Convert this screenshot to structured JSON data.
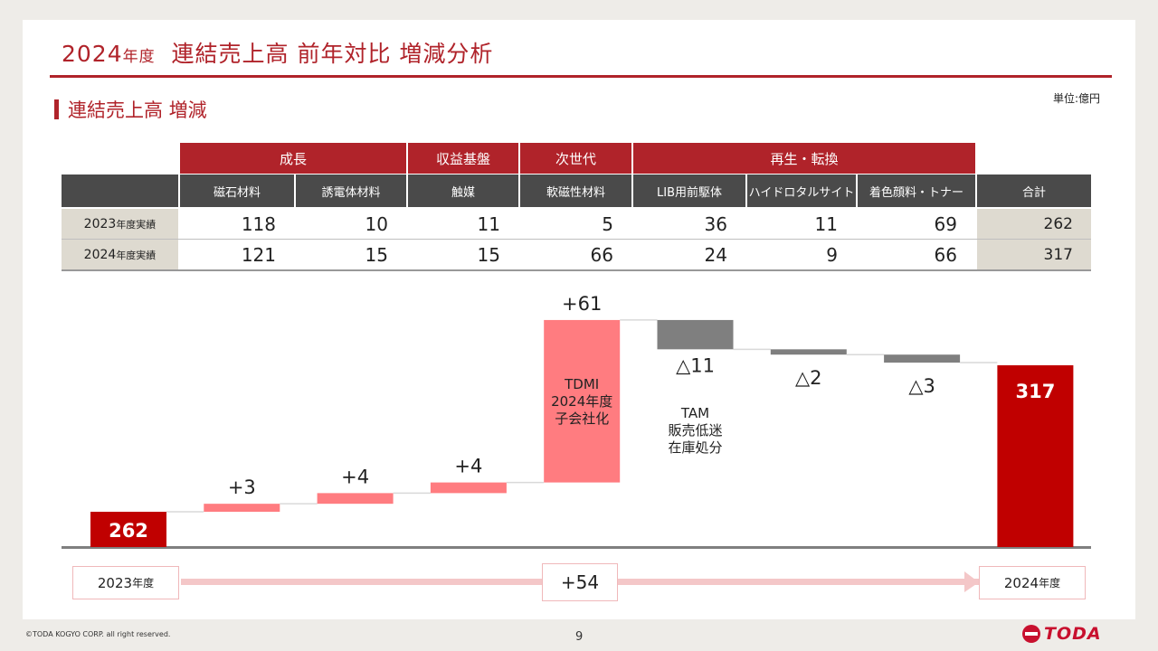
{
  "slide_title": {
    "year": "2024",
    "year_suffix": "年度",
    "text": "連結売上高 前年対比 増減分析"
  },
  "section_title": "連結売上高 増減",
  "unit": "単位:億円",
  "table": {
    "groups": [
      "成長",
      "収益基盤",
      "次世代",
      "再生・転換"
    ],
    "headers": [
      "磁石材料",
      "誘電体材料",
      "触媒",
      "軟磁性材料",
      "LIB用前駆体",
      "ハイドロタルサイト",
      "着色顔料・トナー",
      "合計"
    ],
    "rows": [
      {
        "year": "2023",
        "suffix": "年度実績",
        "values": [
          "118",
          "10",
          "11",
          "5",
          "36",
          "11",
          "69"
        ],
        "total": "262"
      },
      {
        "year": "2024",
        "suffix": "年度実績",
        "values": [
          "121",
          "15",
          "15",
          "66",
          "24",
          "9",
          "66"
        ],
        "total": "317"
      }
    ]
  },
  "chart_data": {
    "type": "bar",
    "subtype": "waterfall",
    "categories": [
      "2023年度",
      "磁石材料",
      "誘電体材料",
      "触媒",
      "軟磁性材料",
      "LIB用前駆体",
      "ハイドロタルサイト",
      "着色顔料・トナー",
      "2024年度"
    ],
    "start": 262,
    "end": 317,
    "deltas": [
      3,
      4,
      4,
      61,
      -11,
      -2,
      -3
    ],
    "delta_labels": [
      "+3",
      "+4",
      "+4",
      "+61",
      "△11",
      "△2",
      "△3"
    ],
    "start_label": "262",
    "end_label": "317",
    "annotations": [
      {
        "category": "軟磁性材料",
        "lines": [
          "TDMI",
          "2024年度",
          "子会社化"
        ]
      },
      {
        "category": "LIB用前駆体",
        "lines": [
          "TAM",
          "販売低迷",
          "在庫処分"
        ]
      }
    ],
    "colors": {
      "total": "#c00000",
      "increase": "#ff7c80",
      "decrease": "#7f7f7f"
    }
  },
  "bottom": {
    "from": "2023",
    "from_suffix": "年度",
    "change": "+54",
    "to": "2024",
    "to_suffix": "年度"
  },
  "footer": {
    "copyright": "©TODA KOGYO CORP. all right reserved.",
    "page": "9",
    "logo": "TODA"
  }
}
